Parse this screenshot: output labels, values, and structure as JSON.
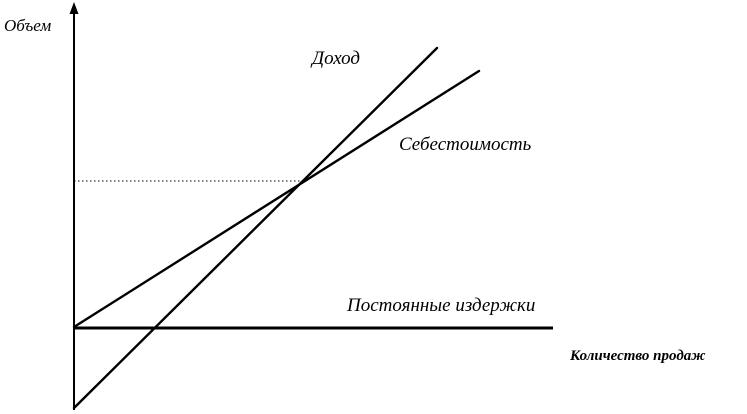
{
  "diagram": {
    "y_axis_label": "Объем",
    "x_axis_label": "Количество продаж",
    "lines": {
      "revenue": {
        "label": "Доход"
      },
      "cost": {
        "label": "Себестоимость"
      },
      "fixed": {
        "label": "Постоянные издержки"
      }
    },
    "break_even_guide": true
  }
}
